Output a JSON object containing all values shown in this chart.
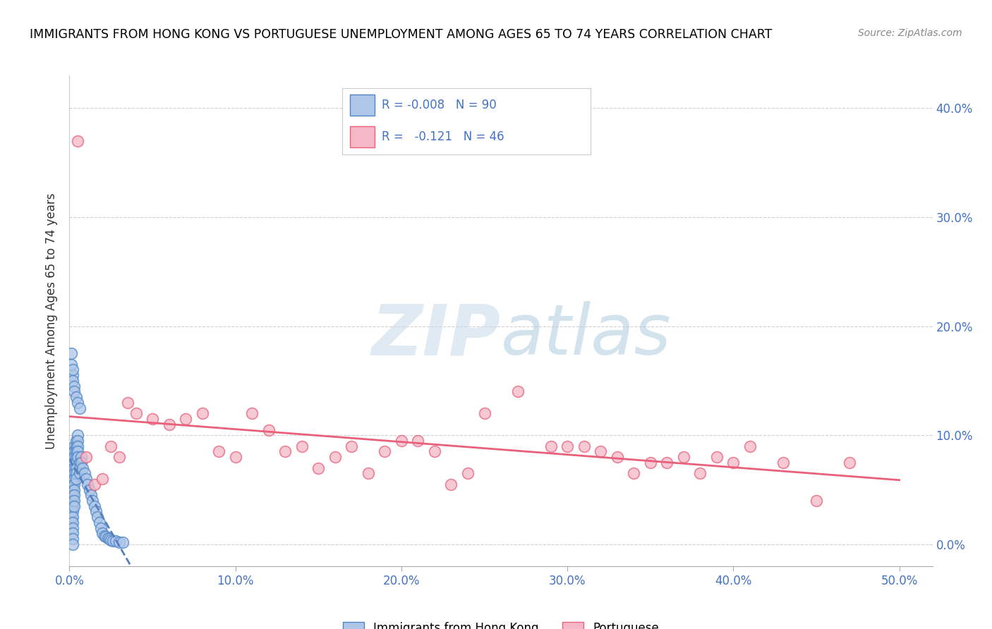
{
  "title": "IMMIGRANTS FROM HONG KONG VS PORTUGUESE UNEMPLOYMENT AMONG AGES 65 TO 74 YEARS CORRELATION CHART",
  "source": "Source: ZipAtlas.com",
  "ylabel": "Unemployment Among Ages 65 to 74 years",
  "legend_label1": "Immigrants from Hong Kong",
  "legend_label2": "Portuguese",
  "r1": "-0.008",
  "n1": "90",
  "r2": "-0.121",
  "n2": "46",
  "color_hk_fill": "#aec6e8",
  "color_hk_edge": "#4f86c6",
  "color_pt_fill": "#f5b8c8",
  "color_pt_edge": "#e8607a",
  "color_hk_trend": "#5580bb",
  "color_pt_trend": "#e8607a",
  "xlim": [
    0.0,
    0.52
  ],
  "ylim": [
    -0.02,
    0.43
  ],
  "ytick_vals": [
    0.0,
    0.1,
    0.2,
    0.3,
    0.4
  ],
  "xtick_vals": [
    0.0,
    0.1,
    0.2,
    0.3,
    0.4,
    0.5
  ],
  "hk_x": [
    0.001,
    0.001,
    0.001,
    0.001,
    0.001,
    0.001,
    0.001,
    0.001,
    0.001,
    0.001,
    0.002,
    0.002,
    0.002,
    0.002,
    0.002,
    0.002,
    0.002,
    0.002,
    0.002,
    0.002,
    0.002,
    0.002,
    0.002,
    0.002,
    0.002,
    0.002,
    0.002,
    0.002,
    0.003,
    0.003,
    0.003,
    0.003,
    0.003,
    0.003,
    0.003,
    0.003,
    0.003,
    0.003,
    0.003,
    0.003,
    0.004,
    0.004,
    0.004,
    0.004,
    0.004,
    0.004,
    0.004,
    0.004,
    0.005,
    0.005,
    0.005,
    0.005,
    0.005,
    0.006,
    0.006,
    0.006,
    0.007,
    0.007,
    0.008,
    0.009,
    0.01,
    0.011,
    0.012,
    0.013,
    0.014,
    0.015,
    0.016,
    0.017,
    0.018,
    0.019,
    0.02,
    0.021,
    0.022,
    0.023,
    0.024,
    0.025,
    0.026,
    0.028,
    0.03,
    0.032,
    0.001,
    0.001,
    0.002,
    0.002,
    0.002,
    0.003,
    0.003,
    0.004,
    0.005,
    0.006
  ],
  "hk_y": [
    0.055,
    0.06,
    0.065,
    0.05,
    0.045,
    0.04,
    0.035,
    0.03,
    0.025,
    0.02,
    0.075,
    0.07,
    0.065,
    0.06,
    0.055,
    0.05,
    0.045,
    0.04,
    0.035,
    0.03,
    0.025,
    0.02,
    0.015,
    0.01,
    0.005,
    0.0,
    0.08,
    0.085,
    0.09,
    0.085,
    0.08,
    0.075,
    0.07,
    0.065,
    0.06,
    0.055,
    0.05,
    0.045,
    0.04,
    0.035,
    0.095,
    0.09,
    0.085,
    0.08,
    0.075,
    0.07,
    0.065,
    0.06,
    0.1,
    0.095,
    0.09,
    0.085,
    0.08,
    0.075,
    0.07,
    0.065,
    0.08,
    0.075,
    0.07,
    0.065,
    0.06,
    0.055,
    0.05,
    0.045,
    0.04,
    0.035,
    0.03,
    0.025,
    0.02,
    0.015,
    0.01,
    0.008,
    0.007,
    0.006,
    0.005,
    0.004,
    0.003,
    0.003,
    0.002,
    0.002,
    0.165,
    0.175,
    0.155,
    0.16,
    0.15,
    0.145,
    0.14,
    0.135,
    0.13,
    0.125
  ],
  "pt_x": [
    0.005,
    0.01,
    0.015,
    0.02,
    0.025,
    0.03,
    0.035,
    0.04,
    0.05,
    0.06,
    0.07,
    0.08,
    0.09,
    0.1,
    0.11,
    0.12,
    0.13,
    0.14,
    0.15,
    0.16,
    0.17,
    0.18,
    0.19,
    0.2,
    0.21,
    0.22,
    0.23,
    0.24,
    0.25,
    0.27,
    0.29,
    0.31,
    0.33,
    0.35,
    0.37,
    0.39,
    0.41,
    0.43,
    0.45,
    0.47,
    0.3,
    0.32,
    0.34,
    0.36,
    0.38,
    0.4
  ],
  "pt_y": [
    0.37,
    0.08,
    0.055,
    0.06,
    0.09,
    0.08,
    0.13,
    0.12,
    0.115,
    0.11,
    0.115,
    0.12,
    0.085,
    0.08,
    0.12,
    0.105,
    0.085,
    0.09,
    0.07,
    0.08,
    0.09,
    0.065,
    0.085,
    0.095,
    0.095,
    0.085,
    0.055,
    0.065,
    0.12,
    0.14,
    0.09,
    0.09,
    0.08,
    0.075,
    0.08,
    0.08,
    0.09,
    0.075,
    0.04,
    0.075,
    0.09,
    0.085,
    0.065,
    0.075,
    0.065,
    0.075
  ]
}
